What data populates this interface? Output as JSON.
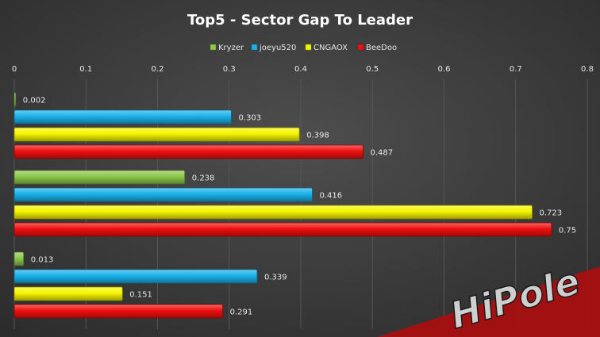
{
  "chart_data": {
    "type": "bar",
    "orientation": "horizontal",
    "title": "Top5 - Sector Gap To Leader",
    "xlabel": "",
    "ylabel": "",
    "xlim": [
      0,
      0.8
    ],
    "x_ticks": [
      "0",
      "0.1",
      "0.2",
      "0.3",
      "0.4",
      "0.5",
      "0.6",
      "0.7",
      "0.8"
    ],
    "x_tick_values": [
      0,
      0.1,
      0.2,
      0.3,
      0.4,
      0.5,
      0.6,
      0.7,
      0.8
    ],
    "x_axis_position": "top",
    "grid": true,
    "legend_position": "top",
    "categories": [
      "",
      "",
      ""
    ],
    "series": [
      {
        "name": "Kryzer",
        "color": "#8cc84b",
        "values": [
          0.002,
          0.238,
          0.013
        ],
        "labels": [
          "0.002",
          "0.238",
          "0.013"
        ]
      },
      {
        "name": "joeyu520",
        "color": "#1ab2ea",
        "values": [
          0.303,
          0.416,
          0.339
        ],
        "labels": [
          "0.303",
          "0.416",
          "0.339"
        ]
      },
      {
        "name": "CNGAOX",
        "color": "#f5f500",
        "values": [
          0.398,
          0.723,
          0.151
        ],
        "labels": [
          "0.398",
          "0.723",
          "0.151"
        ]
      },
      {
        "name": "BeeDoo",
        "color": "#f01010",
        "values": [
          0.487,
          0.75,
          0.291
        ],
        "labels": [
          "0.487",
          "0.75",
          "0.291"
        ]
      }
    ]
  },
  "watermark": {
    "text": "HiPole"
  }
}
